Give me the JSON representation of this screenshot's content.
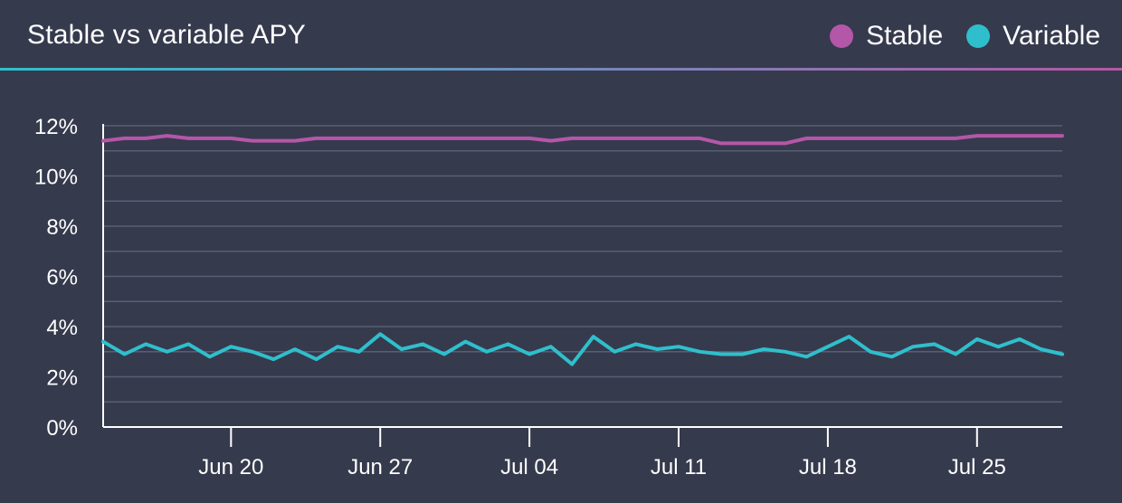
{
  "header": {
    "title": "Stable vs variable APY",
    "legend": [
      {
        "label": "Stable",
        "color": "#b457a8"
      },
      {
        "label": "Variable",
        "color": "#2fbfcc"
      }
    ]
  },
  "chart_data": {
    "type": "line",
    "title": "Stable vs variable APY",
    "xlabel": "",
    "ylabel": "",
    "y_unit": "%",
    "ylim": [
      0,
      12
    ],
    "yticks": [
      0,
      2,
      4,
      6,
      8,
      10,
      12
    ],
    "ytick_labels": [
      "0%",
      "2%",
      "4%",
      "6%",
      "8%",
      "10%",
      "12%"
    ],
    "xticks": [
      {
        "date": "2022-06-20",
        "label": "Jun 20"
      },
      {
        "date": "2022-06-27",
        "label": "Jun 27"
      },
      {
        "date": "2022-07-04",
        "label": "Jul 04"
      },
      {
        "date": "2022-07-11",
        "label": "Jul 11"
      },
      {
        "date": "2022-07-18",
        "label": "Jul 18"
      },
      {
        "date": "2022-07-25",
        "label": "Jul 25"
      }
    ],
    "x": [
      "2022-06-14",
      "2022-06-15",
      "2022-06-16",
      "2022-06-17",
      "2022-06-18",
      "2022-06-19",
      "2022-06-20",
      "2022-06-21",
      "2022-06-22",
      "2022-06-23",
      "2022-06-24",
      "2022-06-25",
      "2022-06-26",
      "2022-06-27",
      "2022-06-28",
      "2022-06-29",
      "2022-06-30",
      "2022-07-01",
      "2022-07-02",
      "2022-07-03",
      "2022-07-04",
      "2022-07-05",
      "2022-07-06",
      "2022-07-07",
      "2022-07-08",
      "2022-07-09",
      "2022-07-10",
      "2022-07-11",
      "2022-07-12",
      "2022-07-13",
      "2022-07-14",
      "2022-07-15",
      "2022-07-16",
      "2022-07-17",
      "2022-07-18",
      "2022-07-19",
      "2022-07-20",
      "2022-07-21",
      "2022-07-22",
      "2022-07-23",
      "2022-07-24",
      "2022-07-25",
      "2022-07-26",
      "2022-07-27",
      "2022-07-28",
      "2022-07-29"
    ],
    "series": [
      {
        "name": "Stable",
        "color": "#b457a8",
        "values": [
          11.4,
          11.5,
          11.5,
          11.6,
          11.5,
          11.5,
          11.5,
          11.4,
          11.4,
          11.4,
          11.5,
          11.5,
          11.5,
          11.5,
          11.5,
          11.5,
          11.5,
          11.5,
          11.5,
          11.5,
          11.5,
          11.4,
          11.5,
          11.5,
          11.5,
          11.5,
          11.5,
          11.5,
          11.5,
          11.3,
          11.3,
          11.3,
          11.3,
          11.5,
          11.5,
          11.5,
          11.5,
          11.5,
          11.5,
          11.5,
          11.5,
          11.6,
          11.6,
          11.6,
          11.6,
          11.6
        ]
      },
      {
        "name": "Variable",
        "color": "#2fbfcc",
        "values": [
          3.4,
          2.9,
          3.3,
          3.0,
          3.3,
          2.8,
          3.2,
          3.0,
          2.7,
          3.1,
          2.7,
          3.2,
          3.0,
          3.7,
          3.1,
          3.3,
          2.9,
          3.4,
          3.0,
          3.3,
          2.9,
          3.2,
          2.5,
          3.6,
          3.0,
          3.3,
          3.1,
          3.2,
          3.0,
          2.9,
          2.9,
          3.1,
          3.0,
          2.8,
          3.2,
          3.6,
          3.0,
          2.8,
          3.2,
          3.3,
          2.9,
          3.5,
          3.2,
          3.5,
          3.1,
          2.9
        ]
      }
    ],
    "grid": true,
    "legend_position": "top-right"
  }
}
